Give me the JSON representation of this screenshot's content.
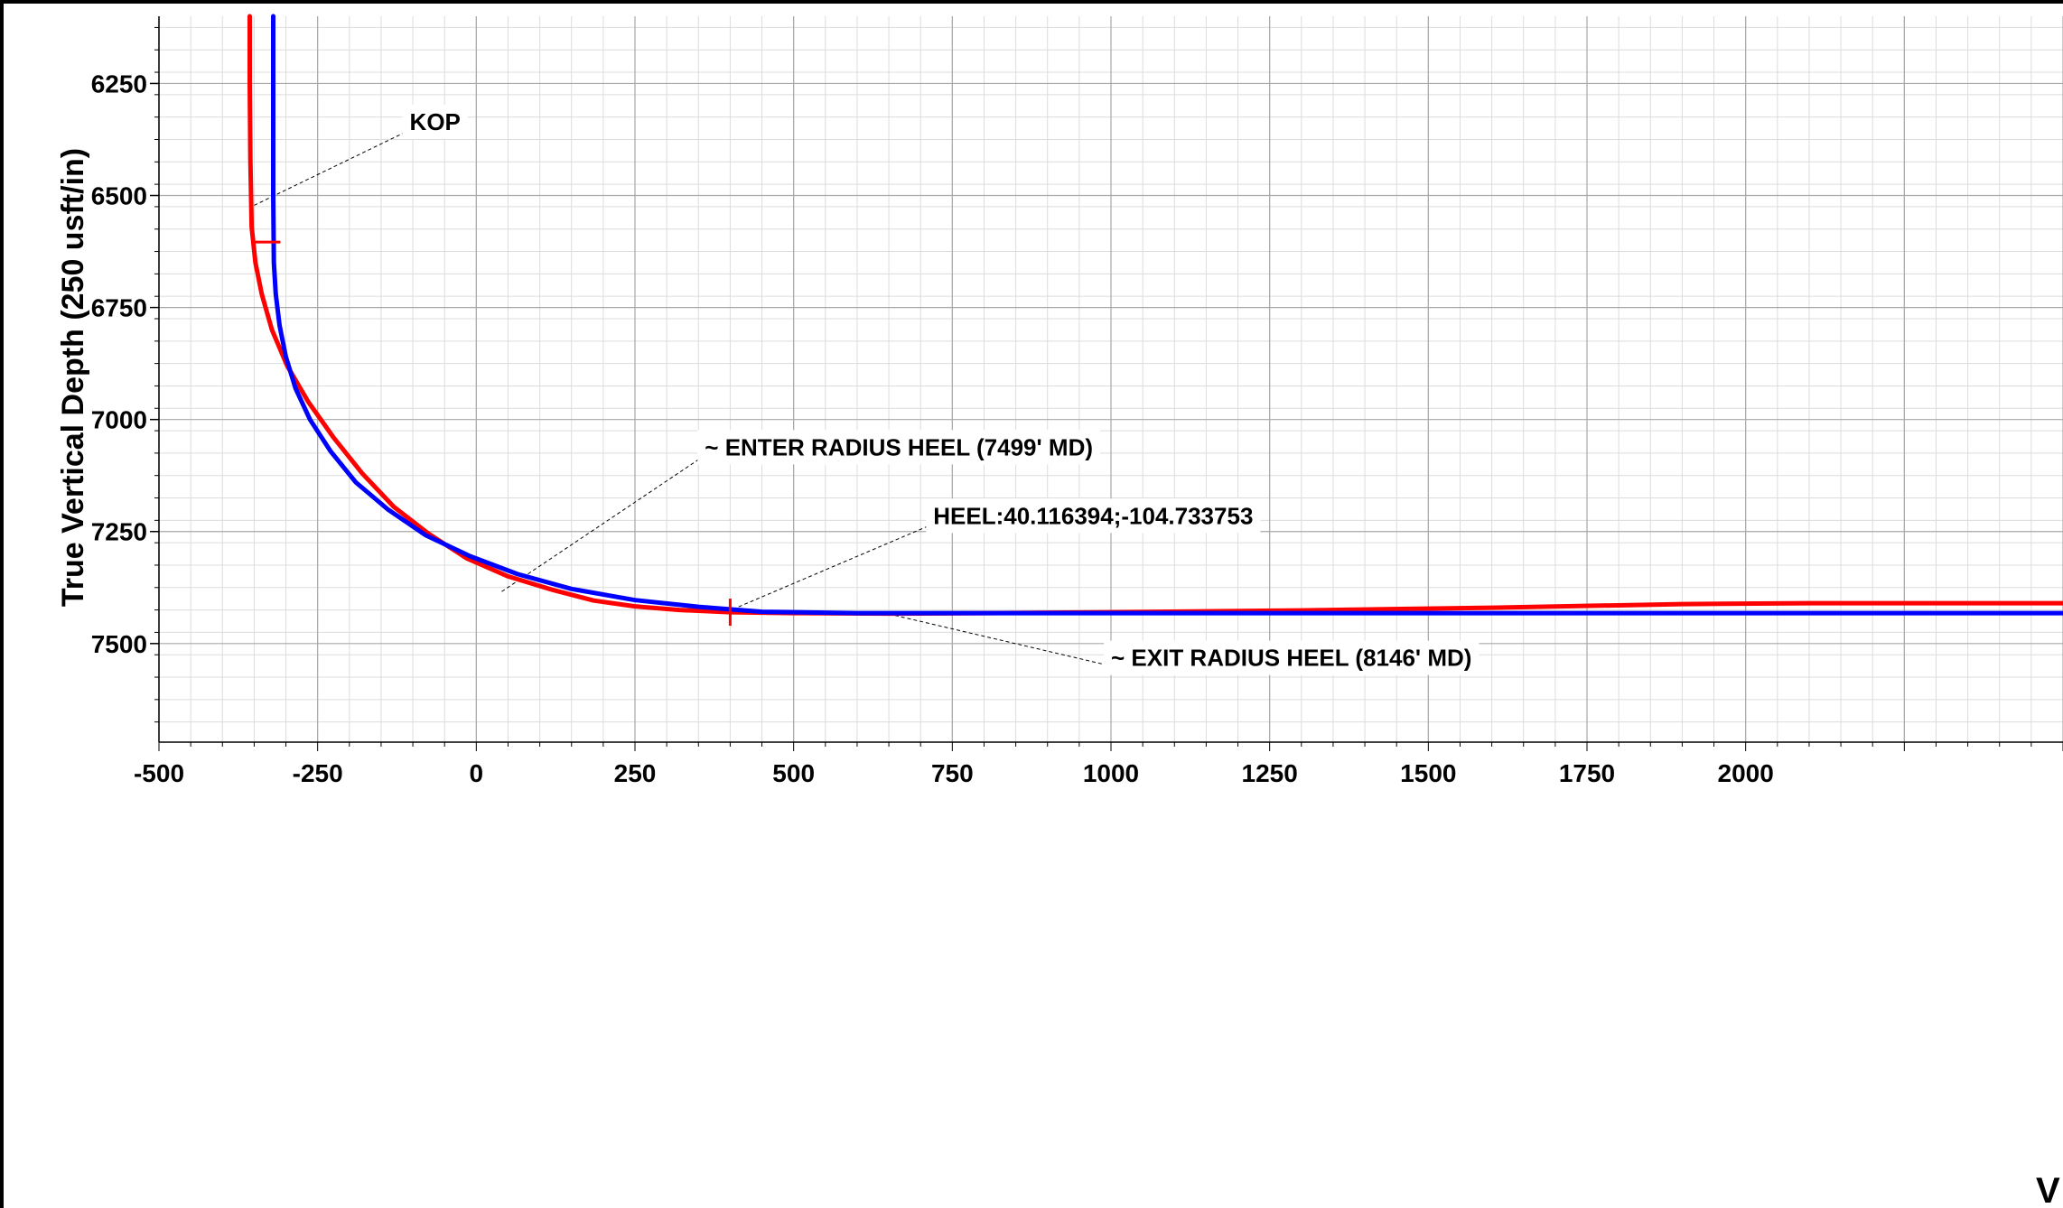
{
  "chart_data": {
    "type": "line",
    "ylabel": "True Vertical Depth (250 usft/in)",
    "xlabel": "V",
    "xlim": [
      -500,
      2500
    ],
    "ylim": [
      6100,
      7720
    ],
    "y_inverted": true,
    "x_ticks": [
      -500,
      -250,
      0,
      250,
      500,
      750,
      1000,
      1250,
      1500,
      1750,
      2000
    ],
    "x_tick_labels": [
      "-500",
      "-250",
      "0",
      "250",
      "500",
      "750",
      "1000",
      "1250",
      "1500",
      "1750",
      "2000"
    ],
    "y_ticks": [
      6250,
      6500,
      6750,
      7000,
      7250,
      7500
    ],
    "y_tick_labels": [
      "6250",
      "6500",
      "6750",
      "7000",
      "7250",
      "7500"
    ],
    "grid": true,
    "series": [
      {
        "color": "#ff0000",
        "x": [
          -357,
          -357,
          -356,
          -354,
          -348,
          -338,
          -322,
          -298,
          -265,
          -225,
          -180,
          -130,
          -75,
          -15,
          50,
          120,
          185,
          250,
          320,
          400,
          500,
          650,
          800,
          1000,
          1300,
          1600,
          1900,
          2100,
          2500
        ],
        "y": [
          6100,
          6250,
          6420,
          6570,
          6650,
          6720,
          6800,
          6880,
          6960,
          7040,
          7120,
          7195,
          7255,
          7310,
          7350,
          7380,
          7404,
          7417,
          7425,
          7430,
          7432,
          7433,
          7432,
          7430,
          7426,
          7420,
          7412,
          7410,
          7410
        ]
      },
      {
        "color": "#0000ff",
        "x": [
          -320,
          -320,
          -320,
          -319,
          -316,
          -310,
          -300,
          -285,
          -262,
          -230,
          -190,
          -140,
          -80,
          -10,
          65,
          150,
          250,
          350,
          450,
          600,
          800,
          1000,
          1500,
          2000,
          2500
        ],
        "y": [
          6100,
          6300,
          6500,
          6650,
          6720,
          6790,
          6860,
          6930,
          7000,
          7070,
          7140,
          7200,
          7258,
          7305,
          7345,
          7378,
          7403,
          7418,
          7429,
          7432,
          7432,
          7432,
          7432,
          7432,
          7432
        ]
      }
    ],
    "markers": [
      {
        "series": 0,
        "x": -330,
        "y": 6604,
        "orientation": "horizontal"
      },
      {
        "series": 0,
        "x": 400,
        "y": 7430,
        "orientation": "vertical"
      }
    ],
    "annotations": [
      {
        "text": "KOP",
        "point": [
          -350,
          6522
        ],
        "label_at": [
          -105,
          6354
        ]
      },
      {
        "text": "~ ENTER RADIUS HEEL (7499' MD)",
        "point": [
          40,
          7384
        ],
        "label_at": [
          360,
          7080
        ]
      },
      {
        "text": "HEEL:40.116394;-104.733753",
        "point": [
          395,
          7429
        ],
        "label_at": [
          720,
          7233
        ]
      },
      {
        "text": "~ EXIT RADIUS HEEL (8146' MD)",
        "point": [
          650,
          7434
        ],
        "label_at": [
          1000,
          7550
        ]
      }
    ]
  }
}
